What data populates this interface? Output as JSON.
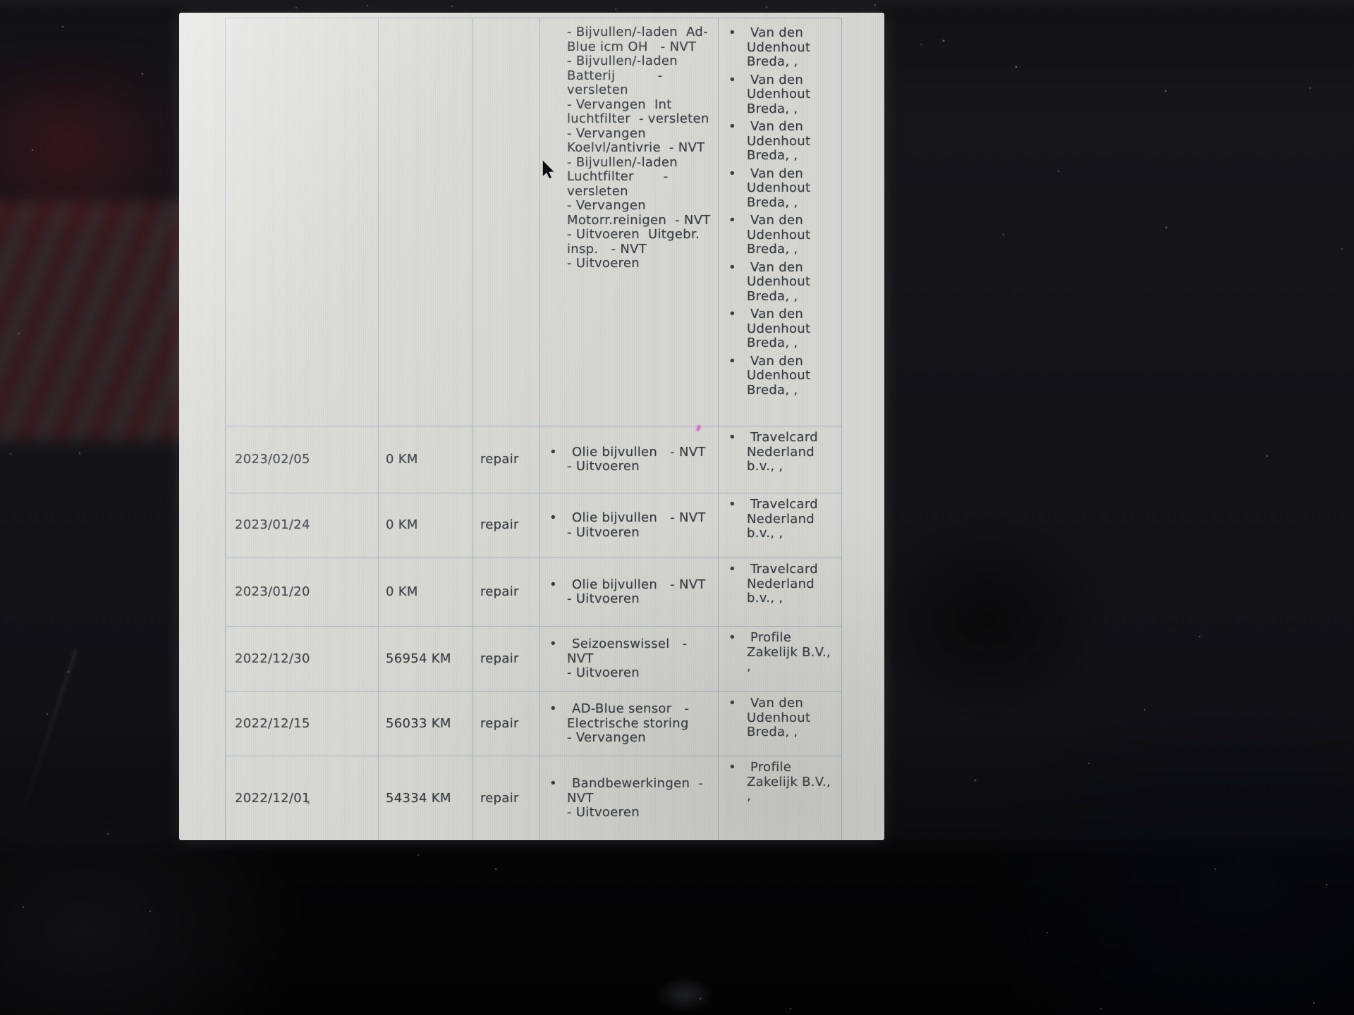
{
  "screen": {
    "description": "Photograph of a monitor showing a white vehicle maintenance history report page with a data table",
    "cursor": {
      "type": "arrow"
    }
  },
  "colors": {
    "backdrop": "#121215",
    "page_bg": "#d6d6d2",
    "table_border": "#a5b0c0",
    "text": "#383c42",
    "artifact_pink": "#d652be"
  },
  "table": {
    "rows": [
      {
        "date": "",
        "km": "",
        "type": "",
        "description": {
          "bullet": "",
          "lines": [
            "- Bijvullen/-laden  Ad-",
            "Blue icm OH   - NVT",
            "- Bijvullen/-laden",
            "Batterij          -",
            "versleten",
            "- Vervangen  Int",
            "luchtfilter  - versleten",
            "- Vervangen",
            "Koelvl/antivrie  - NVT",
            "- Bijvullen/-laden",
            "Luchtfilter       -",
            "versleten",
            "- Vervangen",
            "Motorr.reinigen  - NVT",
            "- Uitvoeren  Uitgebr.",
            "insp.   - NVT",
            "- Uitvoeren"
          ]
        },
        "locations": [
          {
            "bullet": "•",
            "lines": [
              "Van den",
              "Udenhout",
              "Breda, ,"
            ]
          },
          {
            "bullet": "•",
            "lines": [
              "Van den",
              "Udenhout",
              "Breda, ,"
            ]
          },
          {
            "bullet": "•",
            "lines": [
              "Van den",
              "Udenhout",
              "Breda, ,"
            ]
          },
          {
            "bullet": "•",
            "lines": [
              "Van den",
              "Udenhout",
              "Breda, ,"
            ]
          },
          {
            "bullet": "•",
            "lines": [
              "Van den",
              "Udenhout",
              "Breda, ,"
            ]
          },
          {
            "bullet": "•",
            "lines": [
              "Van den",
              "Udenhout",
              "Breda, ,"
            ]
          },
          {
            "bullet": "•",
            "lines": [
              "Van den",
              "Udenhout",
              "Breda, ,"
            ]
          },
          {
            "bullet": "•",
            "lines": [
              "Van den",
              "Udenhout",
              "Breda, ,"
            ]
          }
        ]
      },
      {
        "date": "2023/02/05",
        "km": "0 KM",
        "type": "repair",
        "description": {
          "bullet": "•",
          "lines": [
            "Olie bijvullen   - NVT",
            "- Uitvoeren"
          ]
        },
        "locations": [
          {
            "bullet": "•",
            "lines": [
              "Travelcard",
              "Nederland",
              "b.v., ,"
            ]
          }
        ]
      },
      {
        "date": "2023/01/24",
        "km": "0 KM",
        "type": "repair",
        "description": {
          "bullet": "•",
          "lines": [
            "Olie bijvullen   - NVT",
            "- Uitvoeren"
          ]
        },
        "locations": [
          {
            "bullet": "•",
            "lines": [
              "Travelcard",
              "Nederland",
              "b.v., ,"
            ]
          }
        ]
      },
      {
        "date": "2023/01/20",
        "km": "0 KM",
        "type": "repair",
        "description": {
          "bullet": "•",
          "lines": [
            "Olie bijvullen   - NVT",
            "- Uitvoeren"
          ]
        },
        "locations": [
          {
            "bullet": "•",
            "lines": [
              "Travelcard",
              "Nederland",
              "b.v., ,"
            ]
          }
        ]
      },
      {
        "date": "2022/12/30",
        "km": "56954 KM",
        "type": "repair",
        "description": {
          "bullet": "•",
          "lines": [
            "Seizoenswissel   -",
            "NVT",
            "- Uitvoeren"
          ]
        },
        "locations": [
          {
            "bullet": "•",
            "lines": [
              "Profile",
              "Zakelijk B.V.,",
              ","
            ]
          }
        ]
      },
      {
        "date": "2022/12/15",
        "km": "56033 KM",
        "type": "repair",
        "description": {
          "bullet": "•",
          "lines": [
            "AD-Blue sensor   -",
            "Electrische storing",
            "- Vervangen"
          ]
        },
        "locations": [
          {
            "bullet": "•",
            "lines": [
              "Van den",
              "Udenhout",
              "Breda, ,"
            ]
          }
        ]
      },
      {
        "date": "2022/12/01",
        "km": "54334 KM",
        "type": "repair",
        "description": {
          "bullet": "•",
          "lines": [
            "Bandbewerkingen  -",
            "NVT",
            "- Uitvoeren"
          ]
        },
        "locations": [
          {
            "bullet": "•",
            "lines": [
              "Profile",
              "Zakelijk B.V.,",
              ","
            ]
          }
        ]
      }
    ]
  }
}
